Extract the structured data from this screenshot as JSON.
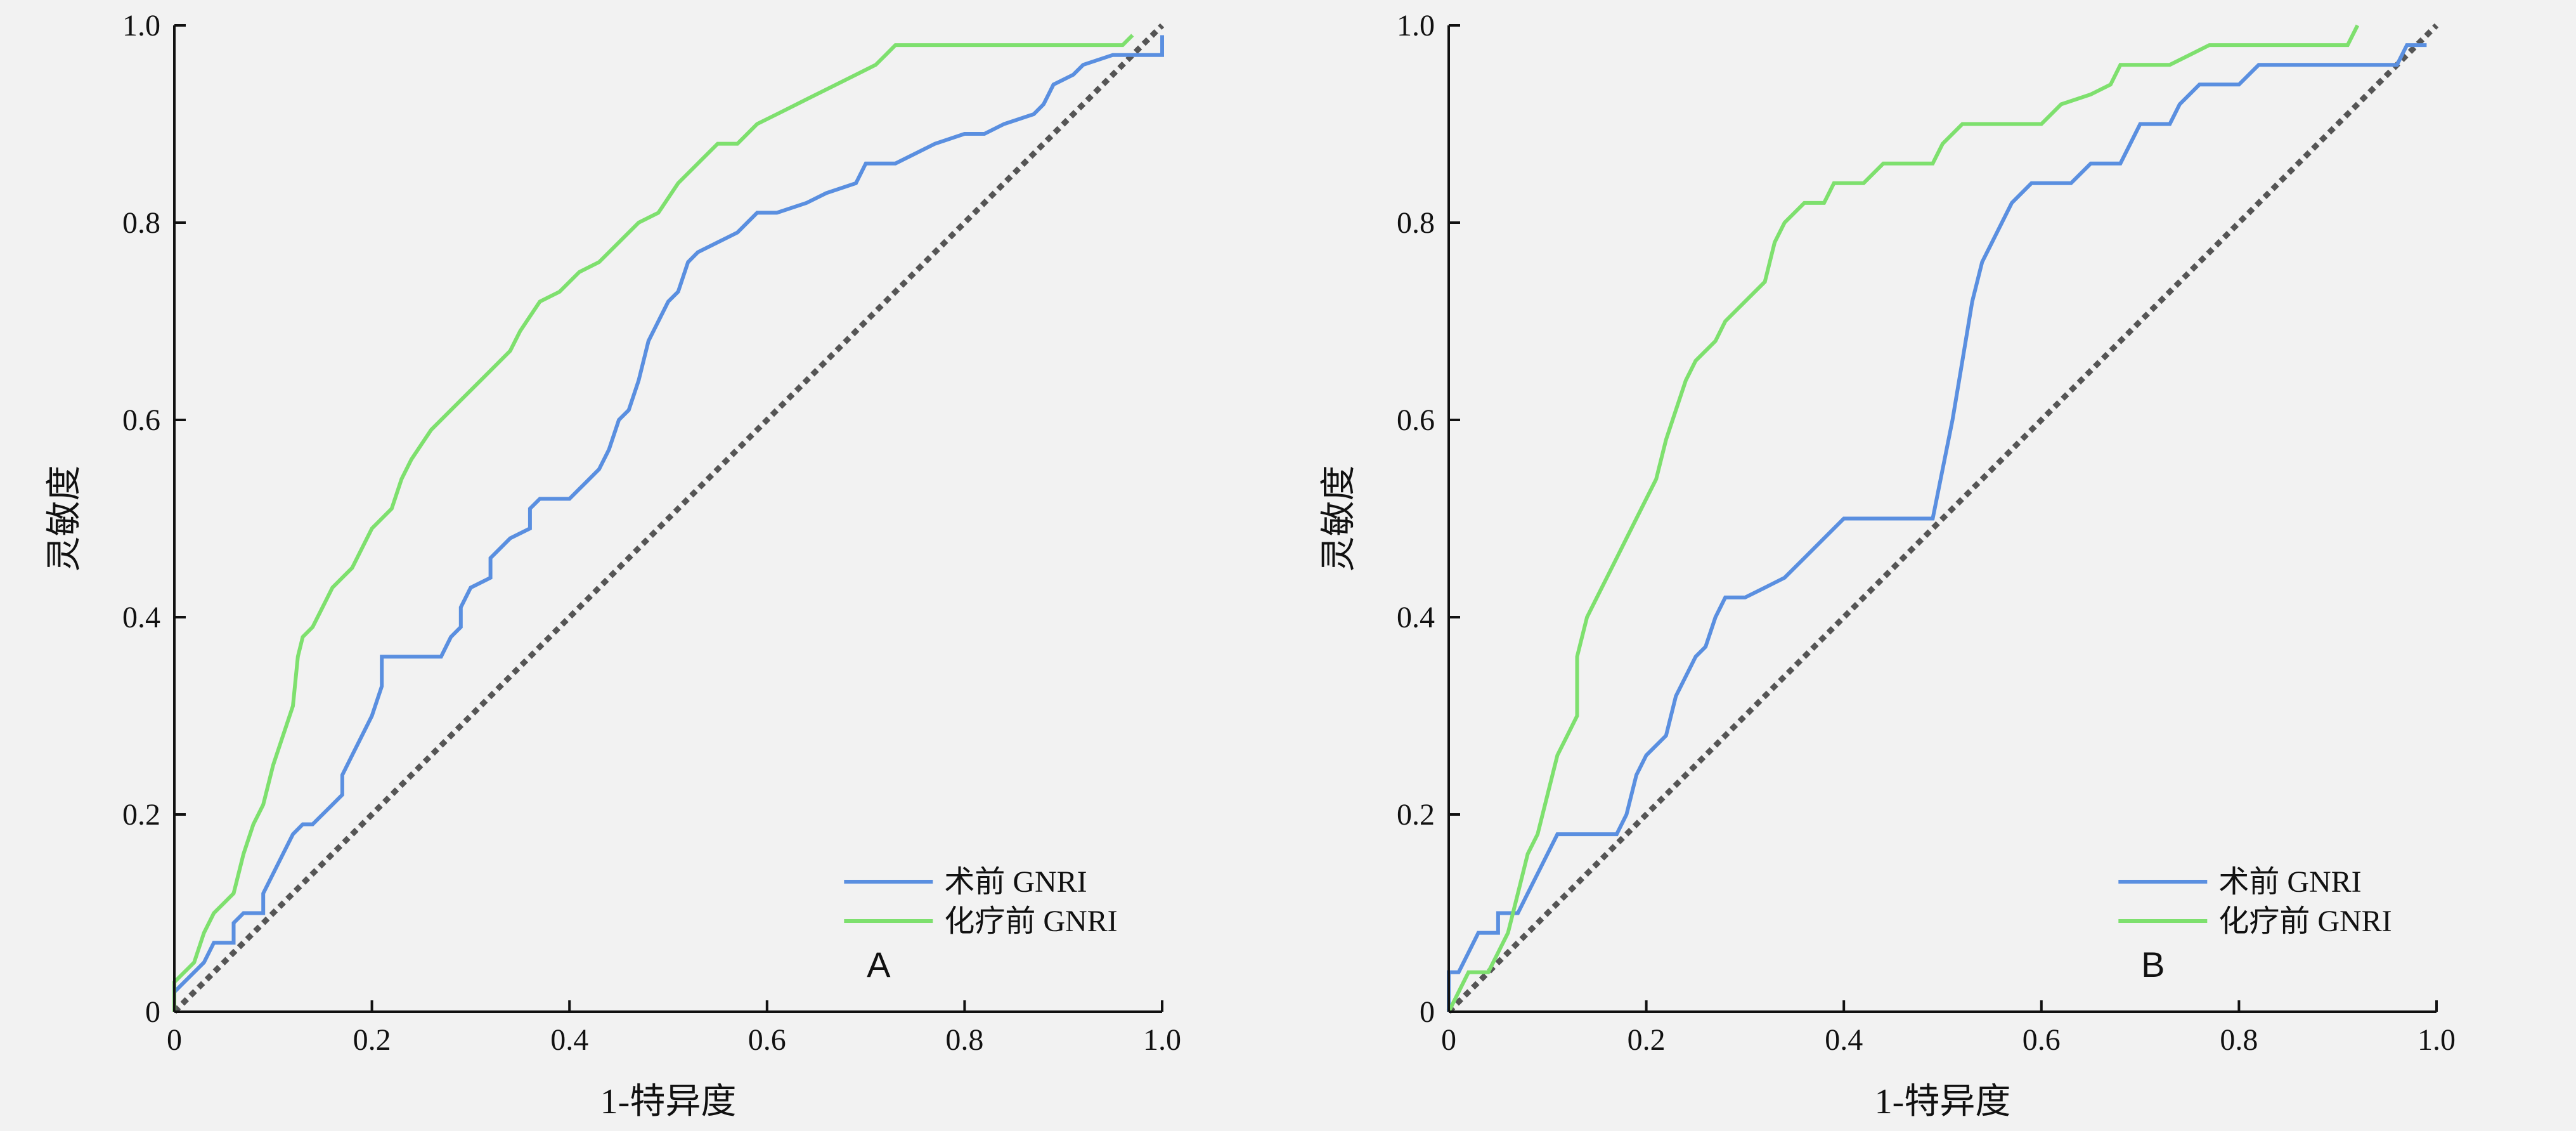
{
  "chart_data": [
    {
      "type": "line",
      "panel_label": "A",
      "xlabel": "1-特异度",
      "ylabel": "灵敏度",
      "xlim": [
        0,
        1
      ],
      "ylim": [
        0,
        1
      ],
      "xticks": [
        "0",
        "0.2",
        "0.4",
        "0.6",
        "0.8",
        "1.0"
      ],
      "yticks": [
        "0",
        "0.2",
        "0.4",
        "0.6",
        "0.8",
        "1.0"
      ],
      "grid": false,
      "legend_position": "bottom-right",
      "reference_line": true,
      "series": [
        {
          "name": "术前 GNRI",
          "color": "#5a8fe0",
          "points": [
            [
              0,
              0
            ],
            [
              0,
              0.02
            ],
            [
              0.01,
              0.03
            ],
            [
              0.02,
              0.04
            ],
            [
              0.03,
              0.05
            ],
            [
              0.04,
              0.07
            ],
            [
              0.06,
              0.07
            ],
            [
              0.06,
              0.09
            ],
            [
              0.07,
              0.1
            ],
            [
              0.09,
              0.1
            ],
            [
              0.09,
              0.12
            ],
            [
              0.1,
              0.14
            ],
            [
              0.11,
              0.16
            ],
            [
              0.12,
              0.18
            ],
            [
              0.13,
              0.19
            ],
            [
              0.14,
              0.19
            ],
            [
              0.15,
              0.2
            ],
            [
              0.16,
              0.21
            ],
            [
              0.17,
              0.22
            ],
            [
              0.17,
              0.24
            ],
            [
              0.18,
              0.26
            ],
            [
              0.19,
              0.28
            ],
            [
              0.2,
              0.3
            ],
            [
              0.21,
              0.33
            ],
            [
              0.21,
              0.36
            ],
            [
              0.23,
              0.36
            ],
            [
              0.27,
              0.36
            ],
            [
              0.28,
              0.38
            ],
            [
              0.29,
              0.39
            ],
            [
              0.29,
              0.41
            ],
            [
              0.3,
              0.43
            ],
            [
              0.32,
              0.44
            ],
            [
              0.32,
              0.46
            ],
            [
              0.34,
              0.48
            ],
            [
              0.36,
              0.49
            ],
            [
              0.36,
              0.51
            ],
            [
              0.37,
              0.52
            ],
            [
              0.4,
              0.52
            ],
            [
              0.41,
              0.53
            ],
            [
              0.42,
              0.54
            ],
            [
              0.43,
              0.55
            ],
            [
              0.44,
              0.57
            ],
            [
              0.45,
              0.6
            ],
            [
              0.46,
              0.61
            ],
            [
              0.47,
              0.64
            ],
            [
              0.48,
              0.68
            ],
            [
              0.49,
              0.7
            ],
            [
              0.5,
              0.72
            ],
            [
              0.51,
              0.73
            ],
            [
              0.52,
              0.76
            ],
            [
              0.53,
              0.77
            ],
            [
              0.55,
              0.78
            ],
            [
              0.57,
              0.79
            ],
            [
              0.59,
              0.81
            ],
            [
              0.61,
              0.81
            ],
            [
              0.64,
              0.82
            ],
            [
              0.66,
              0.83
            ],
            [
              0.69,
              0.84
            ],
            [
              0.7,
              0.86
            ],
            [
              0.73,
              0.86
            ],
            [
              0.75,
              0.87
            ],
            [
              0.77,
              0.88
            ],
            [
              0.8,
              0.89
            ],
            [
              0.82,
              0.89
            ],
            [
              0.84,
              0.9
            ],
            [
              0.87,
              0.91
            ],
            [
              0.88,
              0.92
            ],
            [
              0.89,
              0.94
            ],
            [
              0.91,
              0.95
            ],
            [
              0.92,
              0.96
            ],
            [
              0.95,
              0.97
            ],
            [
              1,
              0.97
            ],
            [
              1,
              0.99
            ]
          ]
        },
        {
          "name": "化疗前 GNRI",
          "color": "#7ee06e",
          "points": [
            [
              0,
              0
            ],
            [
              0,
              0.03
            ],
            [
              0.01,
              0.04
            ],
            [
              0.02,
              0.05
            ],
            [
              0.03,
              0.08
            ],
            [
              0.04,
              0.1
            ],
            [
              0.05,
              0.11
            ],
            [
              0.06,
              0.12
            ],
            [
              0.07,
              0.16
            ],
            [
              0.08,
              0.19
            ],
            [
              0.09,
              0.21
            ],
            [
              0.1,
              0.25
            ],
            [
              0.11,
              0.28
            ],
            [
              0.12,
              0.31
            ],
            [
              0.125,
              0.36
            ],
            [
              0.13,
              0.38
            ],
            [
              0.14,
              0.39
            ],
            [
              0.15,
              0.41
            ],
            [
              0.16,
              0.43
            ],
            [
              0.17,
              0.44
            ],
            [
              0.18,
              0.45
            ],
            [
              0.19,
              0.47
            ],
            [
              0.2,
              0.49
            ],
            [
              0.22,
              0.51
            ],
            [
              0.23,
              0.54
            ],
            [
              0.24,
              0.56
            ],
            [
              0.26,
              0.59
            ],
            [
              0.28,
              0.61
            ],
            [
              0.3,
              0.63
            ],
            [
              0.32,
              0.65
            ],
            [
              0.34,
              0.67
            ],
            [
              0.35,
              0.69
            ],
            [
              0.37,
              0.72
            ],
            [
              0.39,
              0.73
            ],
            [
              0.41,
              0.75
            ],
            [
              0.43,
              0.76
            ],
            [
              0.45,
              0.78
            ],
            [
              0.47,
              0.8
            ],
            [
              0.49,
              0.81
            ],
            [
              0.51,
              0.84
            ],
            [
              0.53,
              0.86
            ],
            [
              0.55,
              0.88
            ],
            [
              0.57,
              0.88
            ],
            [
              0.59,
              0.9
            ],
            [
              0.61,
              0.91
            ],
            [
              0.63,
              0.92
            ],
            [
              0.65,
              0.93
            ],
            [
              0.67,
              0.94
            ],
            [
              0.69,
              0.95
            ],
            [
              0.71,
              0.96
            ],
            [
              0.72,
              0.97
            ],
            [
              0.73,
              0.98
            ],
            [
              0.75,
              0.98
            ],
            [
              0.85,
              0.98
            ],
            [
              0.96,
              0.98
            ],
            [
              0.97,
              0.99
            ]
          ]
        }
      ]
    },
    {
      "type": "line",
      "panel_label": "B",
      "xlabel": "1-特异度",
      "ylabel": "灵敏度",
      "xlim": [
        0,
        1
      ],
      "ylim": [
        0,
        1
      ],
      "xticks": [
        "0",
        "0.2",
        "0.4",
        "0.6",
        "0.8",
        "1.0"
      ],
      "yticks": [
        "0",
        "0.2",
        "0.4",
        "0.6",
        "0.8",
        "1.0"
      ],
      "grid": false,
      "legend_position": "bottom-right",
      "reference_line": true,
      "series": [
        {
          "name": "术前 GNRI",
          "color": "#5a8fe0",
          "points": [
            [
              0,
              0
            ],
            [
              0,
              0.04
            ],
            [
              0.01,
              0.04
            ],
            [
              0.02,
              0.06
            ],
            [
              0.03,
              0.08
            ],
            [
              0.05,
              0.08
            ],
            [
              0.05,
              0.1
            ],
            [
              0.07,
              0.1
            ],
            [
              0.08,
              0.12
            ],
            [
              0.09,
              0.14
            ],
            [
              0.1,
              0.16
            ],
            [
              0.11,
              0.18
            ],
            [
              0.17,
              0.18
            ],
            [
              0.18,
              0.2
            ],
            [
              0.19,
              0.24
            ],
            [
              0.2,
              0.26
            ],
            [
              0.22,
              0.28
            ],
            [
              0.23,
              0.32
            ],
            [
              0.24,
              0.34
            ],
            [
              0.25,
              0.36
            ],
            [
              0.26,
              0.37
            ],
            [
              0.27,
              0.4
            ],
            [
              0.28,
              0.42
            ],
            [
              0.3,
              0.42
            ],
            [
              0.32,
              0.43
            ],
            [
              0.34,
              0.44
            ],
            [
              0.36,
              0.46
            ],
            [
              0.38,
              0.48
            ],
            [
              0.4,
              0.5
            ],
            [
              0.49,
              0.5
            ],
            [
              0.5,
              0.55
            ],
            [
              0.51,
              0.6
            ],
            [
              0.52,
              0.66
            ],
            [
              0.53,
              0.72
            ],
            [
              0.54,
              0.76
            ],
            [
              0.55,
              0.78
            ],
            [
              0.56,
              0.8
            ],
            [
              0.57,
              0.82
            ],
            [
              0.59,
              0.84
            ],
            [
              0.63,
              0.84
            ],
            [
              0.65,
              0.86
            ],
            [
              0.68,
              0.86
            ],
            [
              0.69,
              0.88
            ],
            [
              0.7,
              0.9
            ],
            [
              0.73,
              0.9
            ],
            [
              0.74,
              0.92
            ],
            [
              0.76,
              0.94
            ],
            [
              0.8,
              0.94
            ],
            [
              0.82,
              0.96
            ],
            [
              0.86,
              0.96
            ],
            [
              0.96,
              0.96
            ],
            [
              0.97,
              0.98
            ],
            [
              0.99,
              0.98
            ]
          ]
        },
        {
          "name": "化疗前 GNRI",
          "color": "#7ee06e",
          "points": [
            [
              0,
              0
            ],
            [
              0.01,
              0.02
            ],
            [
              0.02,
              0.04
            ],
            [
              0.04,
              0.04
            ],
            [
              0.05,
              0.06
            ],
            [
              0.06,
              0.08
            ],
            [
              0.07,
              0.12
            ],
            [
              0.08,
              0.16
            ],
            [
              0.09,
              0.18
            ],
            [
              0.1,
              0.22
            ],
            [
              0.11,
              0.26
            ],
            [
              0.12,
              0.28
            ],
            [
              0.13,
              0.3
            ],
            [
              0.13,
              0.36
            ],
            [
              0.14,
              0.4
            ],
            [
              0.15,
              0.42
            ],
            [
              0.16,
              0.44
            ],
            [
              0.17,
              0.46
            ],
            [
              0.18,
              0.48
            ],
            [
              0.19,
              0.5
            ],
            [
              0.2,
              0.52
            ],
            [
              0.21,
              0.54
            ],
            [
              0.22,
              0.58
            ],
            [
              0.23,
              0.61
            ],
            [
              0.24,
              0.64
            ],
            [
              0.25,
              0.66
            ],
            [
              0.27,
              0.68
            ],
            [
              0.28,
              0.7
            ],
            [
              0.3,
              0.72
            ],
            [
              0.32,
              0.74
            ],
            [
              0.33,
              0.78
            ],
            [
              0.34,
              0.8
            ],
            [
              0.36,
              0.82
            ],
            [
              0.38,
              0.82
            ],
            [
              0.39,
              0.84
            ],
            [
              0.42,
              0.84
            ],
            [
              0.44,
              0.86
            ],
            [
              0.49,
              0.86
            ],
            [
              0.5,
              0.88
            ],
            [
              0.52,
              0.9
            ],
            [
              0.54,
              0.9
            ],
            [
              0.6,
              0.9
            ],
            [
              0.62,
              0.92
            ],
            [
              0.65,
              0.93
            ],
            [
              0.67,
              0.94
            ],
            [
              0.68,
              0.96
            ],
            [
              0.73,
              0.96
            ],
            [
              0.75,
              0.97
            ],
            [
              0.77,
              0.98
            ],
            [
              0.84,
              0.98
            ],
            [
              0.91,
              0.98
            ],
            [
              0.92,
              1.0
            ]
          ]
        }
      ]
    }
  ]
}
